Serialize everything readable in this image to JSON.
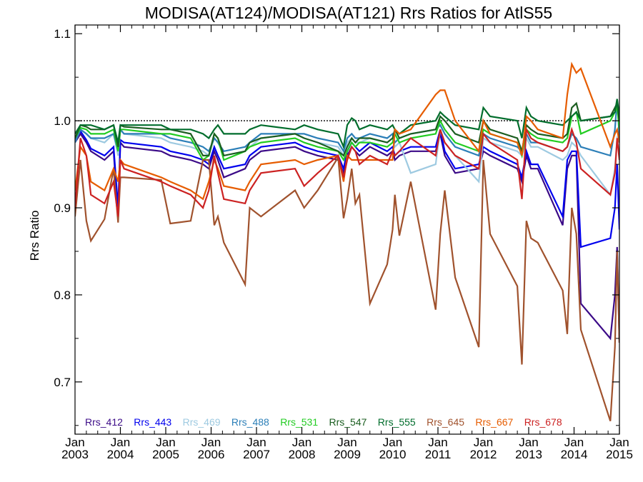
{
  "chart_data": {
    "type": "line",
    "title": "MODISA(AT124)/MODISA(AT121)  Rrs Ratios for AtlS55",
    "xlabel": "",
    "ylabel": "Rrs Ratio",
    "xlim": [
      2003.0,
      2015.0
    ],
    "ylim": [
      0.64,
      1.11
    ],
    "x_ticks": [
      {
        "value": 2003,
        "month": "Jan",
        "year": "2003"
      },
      {
        "value": 2004,
        "month": "Jan",
        "year": "2004"
      },
      {
        "value": 2005,
        "month": "Jan",
        "year": "2005"
      },
      {
        "value": 2006,
        "month": "Jan",
        "year": "2006"
      },
      {
        "value": 2007,
        "month": "Jan",
        "year": "2007"
      },
      {
        "value": 2008,
        "month": "Jan",
        "year": "2008"
      },
      {
        "value": 2009,
        "month": "Jan",
        "year": "2009"
      },
      {
        "value": 2010,
        "month": "Jan",
        "year": "2010"
      },
      {
        "value": 2011,
        "month": "Jan",
        "year": "2011"
      },
      {
        "value": 2012,
        "month": "Jan",
        "year": "2012"
      },
      {
        "value": 2013,
        "month": "Jan",
        "year": "2013"
      },
      {
        "value": 2014,
        "month": "Jan",
        "year": "2014"
      },
      {
        "value": 2015,
        "month": "Jan",
        "year": "2015"
      }
    ],
    "y_ticks": [
      {
        "value": 0.7,
        "label": "0.7"
      },
      {
        "value": 0.8,
        "label": "0.8"
      },
      {
        "value": 0.9,
        "label": "0.9"
      },
      {
        "value": 1.0,
        "label": "1.0"
      },
      {
        "value": 1.1,
        "label": "1.1"
      }
    ],
    "reference_line": {
      "y": 1.0,
      "style": "dotted",
      "color": "#000000"
    },
    "legend_position": "bottom",
    "grid": false,
    "x": [
      2003.0,
      2003.12,
      2003.25,
      2003.35,
      2003.65,
      2003.85,
      2003.95,
      2004.0,
      2004.08,
      2004.9,
      2005.1,
      2005.55,
      2005.82,
      2005.95,
      2006.07,
      2006.15,
      2006.28,
      2006.75,
      2006.85,
      2007.1,
      2007.85,
      2008.05,
      2008.35,
      2008.8,
      2008.92,
      2009.0,
      2009.1,
      2009.18,
      2009.27,
      2009.5,
      2009.88,
      2010.0,
      2010.05,
      2010.15,
      2010.4,
      2010.95,
      2011.05,
      2011.15,
      2011.38,
      2011.9,
      2012.0,
      2012.15,
      2012.75,
      2012.85,
      2012.95,
      2013.05,
      2013.2,
      2013.75,
      2013.85,
      2013.95,
      2014.05,
      2014.15,
      2014.8,
      2014.9,
      2014.95,
      2015.0
    ],
    "series": [
      {
        "name": "Rrs_412",
        "color": "#3b0a87",
        "values": [
          0.975,
          0.985,
          0.975,
          0.965,
          0.955,
          0.965,
          0.89,
          0.975,
          0.97,
          0.965,
          0.96,
          0.955,
          0.95,
          0.945,
          0.965,
          0.955,
          0.935,
          0.945,
          0.955,
          0.965,
          0.97,
          0.965,
          0.96,
          0.955,
          0.94,
          0.96,
          0.97,
          0.965,
          0.96,
          0.97,
          0.96,
          0.965,
          0.955,
          0.96,
          0.965,
          0.965,
          0.985,
          0.96,
          0.94,
          0.945,
          0.965,
          0.96,
          0.945,
          0.93,
          0.96,
          0.945,
          0.945,
          0.88,
          0.945,
          0.96,
          0.96,
          0.79,
          0.75,
          0.8,
          0.855,
          0.745
        ]
      },
      {
        "name": "Rrs_443",
        "color": "#0000ee",
        "values": [
          0.978,
          0.988,
          0.978,
          0.968,
          0.96,
          0.97,
          0.9,
          0.978,
          0.975,
          0.97,
          0.965,
          0.96,
          0.955,
          0.95,
          0.97,
          0.96,
          0.945,
          0.95,
          0.96,
          0.97,
          0.975,
          0.97,
          0.965,
          0.96,
          0.945,
          0.965,
          0.975,
          0.97,
          0.965,
          0.975,
          0.965,
          0.97,
          0.96,
          0.965,
          0.97,
          0.97,
          0.99,
          0.965,
          0.945,
          0.95,
          0.97,
          0.965,
          0.95,
          0.935,
          0.965,
          0.95,
          0.95,
          0.89,
          0.955,
          0.965,
          0.965,
          0.855,
          0.865,
          0.9,
          0.95,
          0.875
        ]
      },
      {
        "name": "Rrs_469",
        "color": "#9ecae1",
        "values": [
          0.975,
          0.99,
          0.985,
          0.98,
          0.975,
          0.985,
          0.96,
          0.99,
          0.985,
          0.98,
          0.975,
          0.97,
          0.965,
          0.96,
          0.98,
          0.975,
          0.96,
          0.965,
          0.97,
          0.98,
          0.985,
          0.98,
          0.975,
          0.97,
          0.96,
          0.975,
          0.98,
          0.975,
          0.975,
          0.98,
          0.975,
          0.98,
          0.97,
          0.975,
          0.94,
          0.95,
          0.99,
          0.975,
          0.96,
          0.93,
          0.98,
          0.975,
          0.965,
          0.96,
          0.98,
          0.97,
          0.97,
          0.955,
          0.96,
          0.975,
          0.97,
          0.96,
          0.915,
          0.945,
          0.98,
          0.975
        ]
      },
      {
        "name": "Rrs_488",
        "color": "#2c7fb8",
        "values": [
          0.975,
          0.99,
          0.985,
          0.98,
          0.98,
          0.985,
          0.965,
          0.99,
          0.985,
          0.985,
          0.98,
          0.975,
          0.97,
          0.965,
          0.98,
          0.975,
          0.965,
          0.97,
          0.975,
          0.985,
          0.985,
          0.985,
          0.98,
          0.975,
          0.965,
          0.98,
          0.985,
          0.98,
          0.98,
          0.985,
          0.98,
          0.985,
          0.975,
          0.98,
          0.985,
          0.99,
          0.995,
          0.985,
          0.97,
          0.96,
          0.985,
          0.98,
          0.97,
          0.965,
          0.985,
          0.975,
          0.975,
          0.965,
          0.97,
          0.985,
          0.98,
          0.97,
          0.96,
          0.99,
          1.025,
          0.98
        ]
      },
      {
        "name": "Rrs_531",
        "color": "#22cc22",
        "values": [
          0.98,
          0.992,
          0.99,
          0.985,
          0.985,
          0.99,
          0.965,
          0.99,
          0.99,
          0.985,
          0.985,
          0.98,
          0.955,
          0.96,
          0.985,
          0.98,
          0.955,
          0.965,
          0.97,
          0.975,
          0.98,
          0.975,
          0.97,
          0.965,
          0.955,
          0.965,
          0.975,
          0.97,
          0.975,
          0.975,
          0.97,
          0.975,
          0.985,
          0.975,
          0.98,
          0.985,
          1.0,
          0.99,
          0.975,
          0.965,
          0.99,
          0.985,
          0.975,
          0.96,
          0.99,
          0.985,
          0.98,
          0.975,
          0.98,
          1.005,
          1.01,
          0.985,
          1.0,
          1.01,
          1.015,
          0.99
        ]
      },
      {
        "name": "Rrs_547",
        "color": "#1b5e20",
        "values": [
          0.98,
          0.995,
          0.993,
          0.99,
          0.99,
          0.995,
          0.97,
          0.995,
          0.993,
          0.99,
          0.99,
          0.985,
          0.96,
          0.96,
          0.985,
          0.98,
          0.96,
          0.965,
          0.975,
          0.98,
          0.985,
          0.98,
          0.975,
          0.965,
          0.96,
          0.97,
          0.98,
          0.975,
          0.98,
          0.98,
          0.975,
          0.98,
          0.99,
          0.98,
          0.985,
          0.99,
          1.005,
          1.0,
          0.985,
          0.975,
          1.0,
          0.99,
          0.98,
          0.965,
          0.995,
          0.99,
          0.985,
          0.98,
          0.985,
          1.015,
          1.02,
          1.0,
          1.005,
          1.015,
          1.02,
          1.0
        ]
      },
      {
        "name": "Rrs_555",
        "color": "#006d2c",
        "values": [
          0.985,
          0.995,
          0.995,
          0.995,
          0.99,
          0.995,
          0.975,
          0.995,
          0.995,
          0.995,
          0.99,
          0.99,
          0.985,
          0.98,
          0.99,
          0.995,
          0.985,
          0.985,
          0.99,
          0.995,
          0.99,
          0.995,
          0.99,
          0.985,
          0.97,
          0.995,
          1.003,
          1.0,
          0.99,
          0.995,
          0.99,
          0.995,
          0.99,
          0.985,
          0.995,
          1.0,
          1.01,
          1.005,
          0.995,
          0.99,
          1.015,
          1.005,
          1.0,
          0.98,
          1.015,
          1.005,
          1.0,
          0.995,
          1.0,
          1.005,
          1.01,
          1.0,
          1.005,
          1.01,
          1.025,
          1.005
        ]
      },
      {
        "name": "Rrs_645",
        "color": "#a0522d",
        "values": [
          0.89,
          0.955,
          0.885,
          0.862,
          0.887,
          0.945,
          0.883,
          0.935,
          0.935,
          0.932,
          0.882,
          0.885,
          0.955,
          0.955,
          0.88,
          0.89,
          0.86,
          0.812,
          0.9,
          0.89,
          0.92,
          0.9,
          0.92,
          0.958,
          0.888,
          0.91,
          0.945,
          0.905,
          0.915,
          0.79,
          0.835,
          0.875,
          0.915,
          0.868,
          0.93,
          0.783,
          0.87,
          0.92,
          0.82,
          0.74,
          0.955,
          0.87,
          0.81,
          0.72,
          0.885,
          0.865,
          0.86,
          0.805,
          0.755,
          0.9,
          0.87,
          0.76,
          0.655,
          0.74,
          0.85,
          0.745
        ]
      },
      {
        "name": "Rrs_667",
        "color": "#e65c00",
        "values": [
          0.92,
          0.97,
          0.96,
          0.93,
          0.92,
          0.945,
          0.93,
          0.955,
          0.95,
          0.935,
          0.93,
          0.92,
          0.91,
          0.93,
          0.955,
          0.945,
          0.925,
          0.92,
          0.93,
          0.95,
          0.955,
          0.95,
          0.955,
          0.96,
          0.93,
          0.96,
          0.955,
          0.955,
          0.955,
          0.955,
          0.955,
          0.955,
          0.99,
          0.985,
          0.99,
          1.03,
          1.035,
          1.035,
          1.0,
          0.965,
          1.0,
          0.985,
          0.975,
          0.96,
          1.005,
          1.0,
          0.99,
          0.98,
          1.03,
          1.065,
          1.055,
          1.06,
          0.97,
          0.985,
          0.99,
          0.975
        ]
      },
      {
        "name": "Rrs_678",
        "color": "#cc2222",
        "values": [
          0.9,
          0.98,
          0.96,
          0.915,
          0.905,
          0.93,
          0.89,
          0.955,
          0.945,
          0.93,
          0.925,
          0.915,
          0.9,
          0.92,
          0.96,
          0.94,
          0.91,
          0.905,
          0.92,
          0.94,
          0.945,
          0.925,
          0.94,
          0.96,
          0.935,
          0.955,
          0.97,
          0.965,
          0.95,
          0.96,
          0.95,
          0.965,
          0.96,
          0.965,
          0.98,
          0.96,
          0.99,
          0.975,
          0.96,
          0.945,
          0.985,
          0.975,
          0.955,
          0.91,
          0.99,
          0.98,
          0.975,
          0.965,
          0.97,
          0.99,
          0.975,
          0.945,
          0.915,
          0.94,
          0.98,
          0.955
        ]
      }
    ]
  }
}
